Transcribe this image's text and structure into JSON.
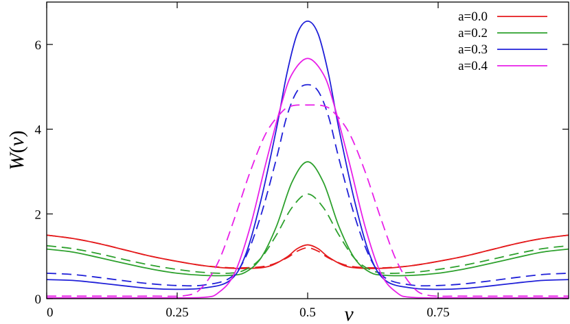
{
  "chart_data": {
    "type": "line",
    "xlabel": "ν",
    "ylabel": "W(ν)",
    "xlim": [
      0,
      1
    ],
    "ylim": [
      0,
      7
    ],
    "x_ticks": [
      "0",
      "0.25",
      "0.5",
      "0.75"
    ],
    "x_tick_values": [
      0,
      0.25,
      0.5,
      0.75
    ],
    "y_ticks": [
      "0",
      "2",
      "4",
      "6"
    ],
    "y_tick_values": [
      0,
      2,
      4,
      6
    ],
    "legend_position": "top-right",
    "line_styles": {
      "solid": "solid",
      "dashed": "dashed"
    },
    "series": [
      {
        "name": "a=0.0",
        "color": "#e41a1c",
        "style": "solid",
        "x": [
          0,
          0.05,
          0.1,
          0.15,
          0.2,
          0.25,
          0.3,
          0.35,
          0.4,
          0.43,
          0.46,
          0.48,
          0.5,
          0.52,
          0.54,
          0.57,
          0.6,
          0.65,
          0.7,
          0.75,
          0.8,
          0.85,
          0.9,
          0.95,
          1.0
        ],
        "values": [
          1.5,
          1.42,
          1.3,
          1.15,
          1.0,
          0.88,
          0.78,
          0.72,
          0.72,
          0.78,
          0.98,
          1.18,
          1.27,
          1.18,
          0.98,
          0.78,
          0.72,
          0.72,
          0.78,
          0.88,
          1.0,
          1.15,
          1.3,
          1.42,
          1.5
        ]
      },
      {
        "name": "",
        "color": "#e41a1c",
        "style": "dashed",
        "x": [
          0,
          0.05,
          0.1,
          0.15,
          0.2,
          0.25,
          0.3,
          0.35,
          0.4,
          0.43,
          0.46,
          0.48,
          0.5,
          0.52,
          0.54,
          0.57,
          0.6,
          0.65,
          0.7,
          0.75,
          0.8,
          0.85,
          0.9,
          0.95,
          1.0
        ],
        "values": [
          1.5,
          1.42,
          1.3,
          1.15,
          1.0,
          0.88,
          0.78,
          0.73,
          0.74,
          0.8,
          0.96,
          1.12,
          1.2,
          1.12,
          0.96,
          0.8,
          0.74,
          0.73,
          0.78,
          0.88,
          1.0,
          1.15,
          1.3,
          1.42,
          1.5
        ]
      },
      {
        "name": "a=0.2",
        "color": "#2ca02c",
        "style": "solid",
        "x": [
          0,
          0.05,
          0.1,
          0.15,
          0.2,
          0.25,
          0.3,
          0.35,
          0.38,
          0.41,
          0.44,
          0.47,
          0.5,
          0.53,
          0.56,
          0.59,
          0.62,
          0.65,
          0.7,
          0.75,
          0.8,
          0.85,
          0.9,
          0.95,
          1.0
        ],
        "values": [
          1.17,
          1.1,
          0.97,
          0.83,
          0.7,
          0.6,
          0.55,
          0.55,
          0.62,
          0.95,
          1.7,
          2.75,
          3.23,
          2.75,
          1.7,
          0.95,
          0.62,
          0.55,
          0.55,
          0.6,
          0.7,
          0.83,
          0.97,
          1.1,
          1.17
        ]
      },
      {
        "name": "",
        "color": "#2ca02c",
        "style": "dashed",
        "x": [
          0,
          0.05,
          0.1,
          0.15,
          0.2,
          0.25,
          0.3,
          0.35,
          0.38,
          0.41,
          0.44,
          0.47,
          0.5,
          0.53,
          0.56,
          0.59,
          0.62,
          0.65,
          0.7,
          0.75,
          0.8,
          0.85,
          0.9,
          0.95,
          1.0
        ],
        "values": [
          1.25,
          1.18,
          1.06,
          0.92,
          0.79,
          0.69,
          0.62,
          0.6,
          0.68,
          0.95,
          1.5,
          2.15,
          2.47,
          2.15,
          1.5,
          0.95,
          0.68,
          0.6,
          0.62,
          0.69,
          0.79,
          0.92,
          1.06,
          1.18,
          1.25
        ]
      },
      {
        "name": "a=0.3",
        "color": "#1f1fd8",
        "style": "solid",
        "x": [
          0,
          0.05,
          0.1,
          0.15,
          0.2,
          0.25,
          0.3,
          0.35,
          0.38,
          0.41,
          0.44,
          0.46,
          0.48,
          0.5,
          0.52,
          0.54,
          0.56,
          0.59,
          0.62,
          0.65,
          0.7,
          0.75,
          0.8,
          0.85,
          0.9,
          0.95,
          1.0
        ],
        "values": [
          0.45,
          0.43,
          0.37,
          0.3,
          0.24,
          0.22,
          0.25,
          0.42,
          1.0,
          2.3,
          4.0,
          5.3,
          6.25,
          6.55,
          6.25,
          5.3,
          4.0,
          2.3,
          1.0,
          0.42,
          0.25,
          0.22,
          0.24,
          0.3,
          0.37,
          0.43,
          0.45
        ]
      },
      {
        "name": "",
        "color": "#1f1fd8",
        "style": "dashed",
        "x": [
          0,
          0.05,
          0.1,
          0.15,
          0.2,
          0.25,
          0.3,
          0.35,
          0.38,
          0.41,
          0.44,
          0.46,
          0.48,
          0.5,
          0.52,
          0.54,
          0.56,
          0.59,
          0.62,
          0.65,
          0.7,
          0.75,
          0.8,
          0.85,
          0.9,
          0.95,
          1.0
        ],
        "values": [
          0.6,
          0.57,
          0.5,
          0.42,
          0.35,
          0.31,
          0.32,
          0.48,
          0.95,
          1.95,
          3.3,
          4.3,
          4.9,
          5.05,
          4.9,
          4.3,
          3.3,
          1.95,
          0.95,
          0.48,
          0.32,
          0.31,
          0.35,
          0.42,
          0.5,
          0.57,
          0.6
        ]
      },
      {
        "name": "a=0.4",
        "color": "#e81ee8",
        "style": "solid",
        "x": [
          0,
          0.1,
          0.2,
          0.3,
          0.33,
          0.36,
          0.39,
          0.42,
          0.45,
          0.47,
          0.5,
          0.53,
          0.55,
          0.58,
          0.61,
          0.64,
          0.67,
          0.7,
          0.8,
          0.9,
          1.0
        ],
        "values": [
          0.02,
          0.02,
          0.02,
          0.03,
          0.15,
          0.6,
          1.7,
          3.2,
          4.6,
          5.3,
          5.67,
          5.3,
          4.6,
          3.2,
          1.7,
          0.6,
          0.15,
          0.03,
          0.02,
          0.02,
          0.02
        ]
      },
      {
        "name": "",
        "color": "#e81ee8",
        "style": "dashed",
        "x": [
          0,
          0.1,
          0.2,
          0.27,
          0.3,
          0.33,
          0.36,
          0.39,
          0.42,
          0.45,
          0.47,
          0.5,
          0.53,
          0.55,
          0.58,
          0.61,
          0.64,
          0.67,
          0.7,
          0.73,
          0.8,
          0.9,
          1.0
        ],
        "values": [
          0.06,
          0.06,
          0.06,
          0.08,
          0.3,
          0.9,
          1.9,
          3.0,
          3.9,
          4.4,
          4.55,
          4.57,
          4.55,
          4.4,
          3.9,
          3.0,
          1.9,
          0.9,
          0.3,
          0.08,
          0.06,
          0.06,
          0.06
        ]
      }
    ]
  }
}
